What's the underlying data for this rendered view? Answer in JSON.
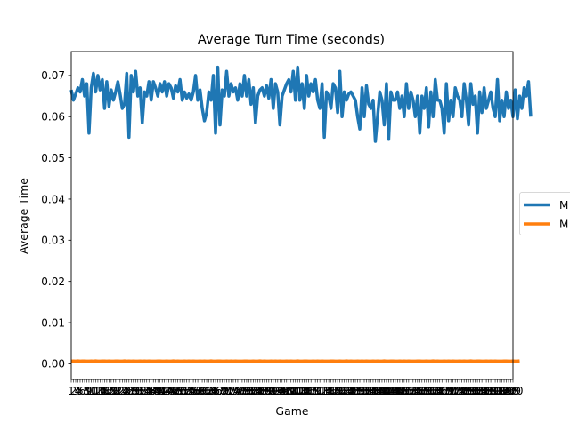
{
  "chart_data": {
    "type": "line",
    "title": "Average Turn Time (seconds)",
    "xlabel": "Game",
    "ylabel": "Average Time",
    "ylim": [
      -0.0038,
      0.0758
    ],
    "yticks": [
      "0.00",
      "0.01",
      "0.02",
      "0.03",
      "0.04",
      "0.05",
      "0.06",
      "0.07"
    ],
    "xlim": [
      1,
      200
    ],
    "grid": false,
    "legend": {
      "placement": "right-outside",
      "entries": [
        "M",
        "M"
      ]
    },
    "colors": [
      "#1f77b4",
      "#ff7f0e"
    ],
    "series": [
      {
        "name": "M",
        "values": [
          0.0665,
          0.064,
          0.0655,
          0.067,
          0.066,
          0.069,
          0.065,
          0.068,
          0.056,
          0.067,
          0.0705,
          0.066,
          0.07,
          0.0665,
          0.069,
          0.062,
          0.0685,
          0.0625,
          0.0665,
          0.064,
          0.066,
          0.0685,
          0.0655,
          0.062,
          0.063,
          0.0705,
          0.055,
          0.07,
          0.066,
          0.071,
          0.065,
          0.067,
          0.0585,
          0.066,
          0.065,
          0.0685,
          0.064,
          0.0685,
          0.067,
          0.065,
          0.068,
          0.066,
          0.0685,
          0.065,
          0.068,
          0.067,
          0.0645,
          0.0675,
          0.066,
          0.069,
          0.064,
          0.066,
          0.0645,
          0.0655,
          0.064,
          0.066,
          0.07,
          0.064,
          0.0665,
          0.062,
          0.059,
          0.061,
          0.066,
          0.064,
          0.07,
          0.056,
          0.072,
          0.058,
          0.0665,
          0.065,
          0.071,
          0.065,
          0.068,
          0.066,
          0.067,
          0.064,
          0.068,
          0.065,
          0.07,
          0.065,
          0.069,
          0.063,
          0.067,
          0.0585,
          0.065,
          0.0665,
          0.067,
          0.065,
          0.0675,
          0.0645,
          0.069,
          0.062,
          0.068,
          0.066,
          0.058,
          0.065,
          0.0665,
          0.068,
          0.069,
          0.066,
          0.071,
          0.064,
          0.072,
          0.064,
          0.068,
          0.062,
          0.07,
          0.065,
          0.068,
          0.066,
          0.069,
          0.064,
          0.062,
          0.068,
          0.055,
          0.066,
          0.065,
          0.062,
          0.068,
          0.067,
          0.061,
          0.071,
          0.06,
          0.066,
          0.064,
          0.0655,
          0.066,
          0.065,
          0.064,
          0.06,
          0.057,
          0.067,
          0.06,
          0.0675,
          0.063,
          0.062,
          0.064,
          0.054,
          0.06,
          0.066,
          0.064,
          0.058,
          0.068,
          0.0545,
          0.066,
          0.064,
          0.064,
          0.066,
          0.062,
          0.065,
          0.06,
          0.068,
          0.062,
          0.066,
          0.064,
          0.06,
          0.065,
          0.056,
          0.065,
          0.062,
          0.067,
          0.0575,
          0.066,
          0.06,
          0.069,
          0.064,
          0.064,
          0.062,
          0.056,
          0.068,
          0.059,
          0.064,
          0.06,
          0.067,
          0.065,
          0.064,
          0.06,
          0.068,
          0.064,
          0.058,
          0.068,
          0.063,
          0.065,
          0.056,
          0.066,
          0.061,
          0.067,
          0.062,
          0.064,
          0.066,
          0.062,
          0.06,
          0.069,
          0.059,
          0.064,
          0.06,
          0.066,
          0.062,
          0.064,
          0.06,
          0.0665,
          0.0595,
          0.065,
          0.062,
          0.067,
          0.065,
          0.0685,
          0.06
        ]
      },
      {
        "name": "M",
        "values": [
          0.00065,
          0.00068,
          0.00066,
          0.0007,
          0.00064,
          0.00067,
          0.00069,
          0.00065,
          0.00066,
          0.00068,
          0.00064,
          0.0007,
          0.00066,
          0.00065,
          0.00068,
          0.00067,
          0.00064,
          0.00069,
          0.00066,
          0.00065,
          0.00067,
          0.00068,
          0.00064,
          0.00066,
          0.0007,
          0.00065,
          0.00067,
          0.00066,
          0.00068,
          0.00064,
          0.00066,
          0.00069,
          0.00065,
          0.00067,
          0.00066,
          0.00068,
          0.00064,
          0.00066,
          0.00065,
          0.00067,
          0.00069,
          0.00066,
          0.00064,
          0.00068,
          0.00066,
          0.00065,
          0.0007,
          0.00066,
          0.00067,
          0.00064,
          0.00066,
          0.00068,
          0.00065,
          0.00067,
          0.00066,
          0.00069,
          0.00064,
          0.00066,
          0.00068,
          0.00065,
          0.00067,
          0.00066,
          0.00064,
          0.0007,
          0.00066,
          0.00065,
          0.00068,
          0.00067,
          0.00064,
          0.00066,
          0.00069,
          0.00065,
          0.00067,
          0.00066,
          0.00068,
          0.00064,
          0.00066,
          0.00065,
          0.00067,
          0.00069,
          0.00066,
          0.00064,
          0.00068,
          0.00066,
          0.00065,
          0.0007,
          0.00066,
          0.00067,
          0.00064,
          0.00066,
          0.00068,
          0.00065,
          0.00067,
          0.00066,
          0.00069,
          0.00064,
          0.00066,
          0.00068,
          0.00065,
          0.00067,
          0.00066,
          0.00064,
          0.0007,
          0.00066,
          0.00065,
          0.00068,
          0.00067,
          0.00064,
          0.00066,
          0.00069,
          0.00065,
          0.00067,
          0.00066,
          0.00068,
          0.00064,
          0.00066,
          0.00065,
          0.00067,
          0.00069,
          0.00066,
          0.00064,
          0.00068,
          0.00066,
          0.00065,
          0.0007,
          0.00066,
          0.00067,
          0.00064,
          0.00066,
          0.00068,
          0.00065,
          0.00067,
          0.00066,
          0.00069,
          0.00064,
          0.00066,
          0.00068,
          0.00065,
          0.00067,
          0.00066,
          0.00064,
          0.0007,
          0.00066,
          0.00065,
          0.00068,
          0.00067,
          0.00064,
          0.00066,
          0.00069,
          0.00065,
          0.00067,
          0.00066,
          0.00068,
          0.00064,
          0.00066,
          0.00065,
          0.00067,
          0.00069,
          0.00066,
          0.00064,
          0.00068,
          0.00066,
          0.00065,
          0.0007,
          0.00066,
          0.00067,
          0.00064,
          0.00066,
          0.00068,
          0.00065,
          0.00067,
          0.00066,
          0.00069,
          0.00064,
          0.00066,
          0.00068,
          0.00065,
          0.00067,
          0.00066,
          0.00064,
          0.0007,
          0.00066,
          0.00065,
          0.00068,
          0.00067,
          0.00064,
          0.00066,
          0.00069,
          0.00065,
          0.00067,
          0.00066,
          0.00068,
          0.00064,
          0.00066,
          0.00065,
          0.00067,
          0.00069,
          0.00066,
          0.00064,
          0.00068,
          0.00066,
          0.00065,
          0.0007
        ]
      }
    ]
  }
}
